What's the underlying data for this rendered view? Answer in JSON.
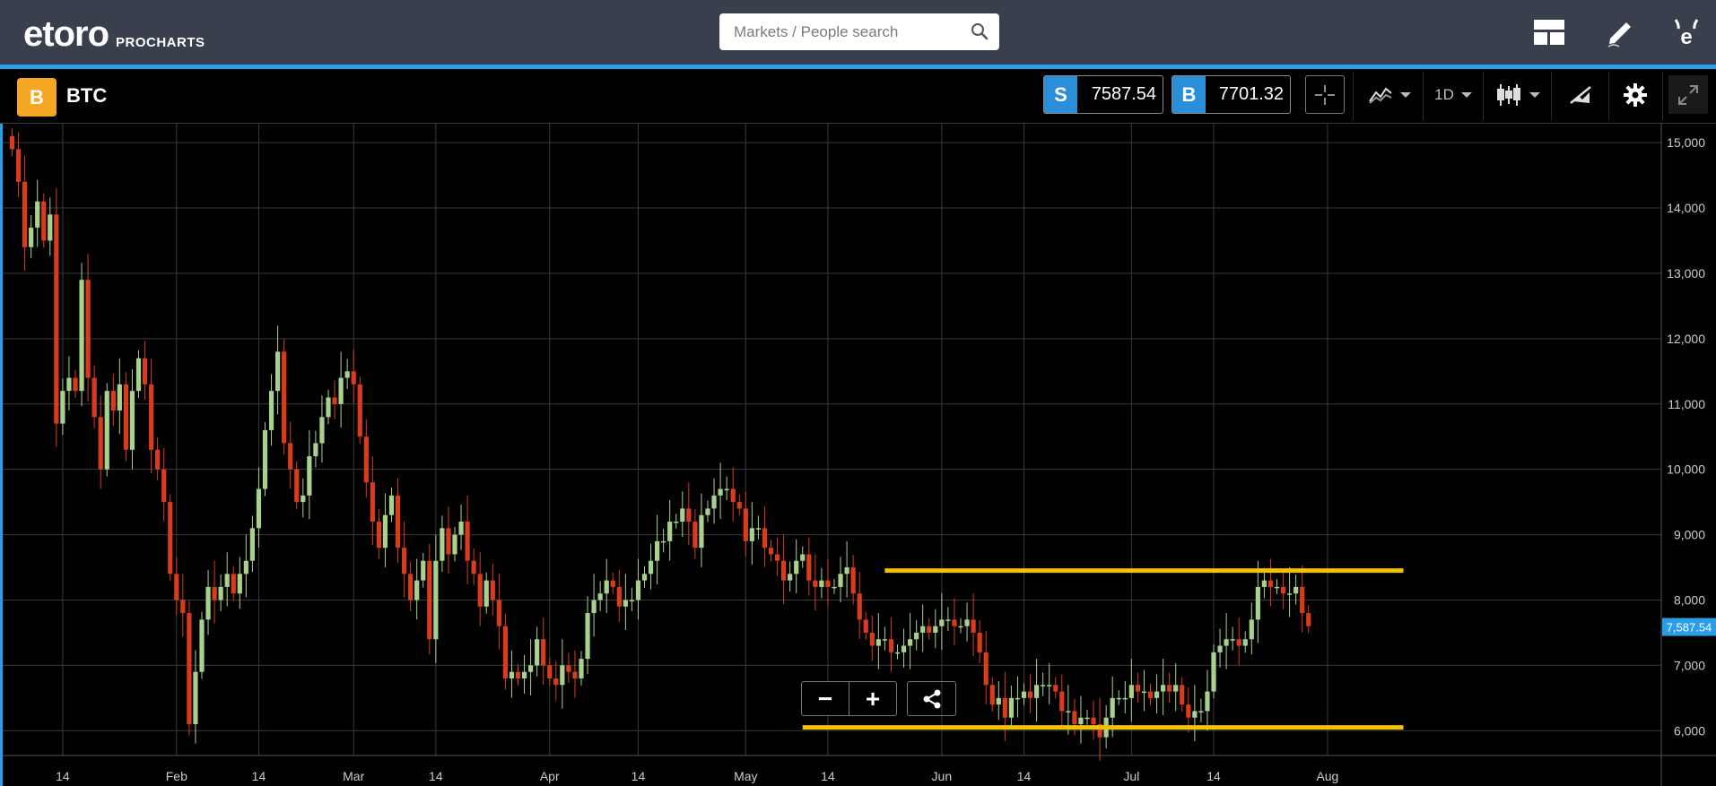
{
  "header": {
    "logo_text": "etoro",
    "logo_suffix": "PROCHARTS",
    "search_placeholder": "Markets / People search",
    "icons": [
      "search-icon",
      "layout-icon",
      "pencil-icon",
      "etoro-profile-icon"
    ]
  },
  "instrument": {
    "symbol": "BTC",
    "coin_glyph": "B",
    "sell_label": "S",
    "sell_price": "7587.54",
    "buy_label": "B",
    "buy_price": "7701.32"
  },
  "toolbar": {
    "timeframe": "1D",
    "icons": [
      "crosshair-icon",
      "compare-icon",
      "candlestick-icon",
      "drawing-tools-icon",
      "gear-icon",
      "expand-icon"
    ]
  },
  "zoom": {
    "minus": "−",
    "plus": "+"
  },
  "colors": {
    "up": "#a9d18e",
    "down": "#d93b1c",
    "grid": "#3a3a3a",
    "support": "#f2c200",
    "accent": "#2a9ee8",
    "coin": "#f5a623"
  },
  "chart_data": {
    "type": "candlestick",
    "y_ticks": [
      "6,000",
      "7,000",
      "8,000",
      "9,000",
      "10,000",
      "11,000",
      "12,000",
      "13,000",
      "14,000",
      "15,000"
    ],
    "y_tick_values": [
      6000,
      7000,
      8000,
      9000,
      10000,
      11000,
      12000,
      13000,
      14000,
      15000
    ],
    "ylim": [
      5620,
      15290
    ],
    "x_ticks": [
      "14",
      "Feb",
      "14",
      "Mar",
      "14",
      "Apr",
      "14",
      "May",
      "14",
      "Jun",
      "14",
      "Jul",
      "14",
      "Aug"
    ],
    "x_tick_index": [
      8,
      26,
      39,
      54,
      67,
      85,
      99,
      116,
      129,
      147,
      160,
      177,
      190,
      208
    ],
    "current_price_label": "7,587.54",
    "current_price": 7587.54,
    "horizontal_lines": [
      {
        "from_index": 138,
        "to_index": 220,
        "value": 8450
      },
      {
        "from_index": 125,
        "to_index": 220,
        "value": 6050
      }
    ],
    "closes": [
      14900,
      14400,
      13400,
      13700,
      14100,
      13500,
      13900,
      10700,
      11200,
      11400,
      11200,
      12900,
      11400,
      10800,
      10000,
      11200,
      10900,
      11300,
      10300,
      11200,
      11700,
      11300,
      10300,
      10000,
      9500,
      8400,
      8000,
      7800,
      6100,
      6900,
      7700,
      8200,
      8000,
      8200,
      8400,
      8100,
      8400,
      8600,
      9100,
      9700,
      10600,
      11200,
      11800,
      10400,
      10000,
      9500,
      9600,
      10200,
      10400,
      10800,
      11100,
      11000,
      11400,
      11500,
      11300,
      10500,
      9800,
      9200,
      8800,
      9300,
      9600,
      8800,
      8400,
      8000,
      8300,
      8600,
      7400,
      8600,
      9100,
      8700,
      9000,
      9200,
      8600,
      8400,
      7900,
      8300,
      8000,
      7600,
      6800,
      6900,
      6800,
      6900,
      7000,
      7400,
      7000,
      6800,
      6700,
      7000,
      6900,
      6800,
      7100,
      7800,
      8000,
      8100,
      8300,
      8200,
      7900,
      8000,
      8000,
      8300,
      8400,
      8600,
      8900,
      8900,
      9200,
      9200,
      9400,
      9200,
      8800,
      9300,
      9400,
      9600,
      9700,
      9700,
      9500,
      9400,
      8900,
      9100,
      9100,
      8800,
      8700,
      8600,
      8300,
      8400,
      8600,
      8700,
      8300,
      8200,
      8300,
      8200,
      8200,
      8400,
      8500,
      8100,
      7700,
      7500,
      7300,
      7400,
      7400,
      7200,
      7200,
      7300,
      7400,
      7500,
      7600,
      7500,
      7600,
      7700,
      7700,
      7600,
      7600,
      7700,
      7500,
      7200,
      6700,
      6400,
      6500,
      6200,
      6500,
      6500,
      6600,
      6500,
      6700,
      6700,
      6700,
      6600,
      6300,
      6300,
      6100,
      6200,
      6200,
      6100,
      5900,
      6200,
      6500,
      6500,
      6500,
      6700,
      6600,
      6600,
      6500,
      6600,
      6700,
      6600,
      6700,
      6400,
      6200,
      6300,
      6300,
      6600,
      7200,
      7300,
      7400,
      7400,
      7300,
      7400,
      7700,
      8200,
      8300,
      8200,
      8200,
      8100,
      8100,
      8200,
      7800,
      7600
    ]
  }
}
